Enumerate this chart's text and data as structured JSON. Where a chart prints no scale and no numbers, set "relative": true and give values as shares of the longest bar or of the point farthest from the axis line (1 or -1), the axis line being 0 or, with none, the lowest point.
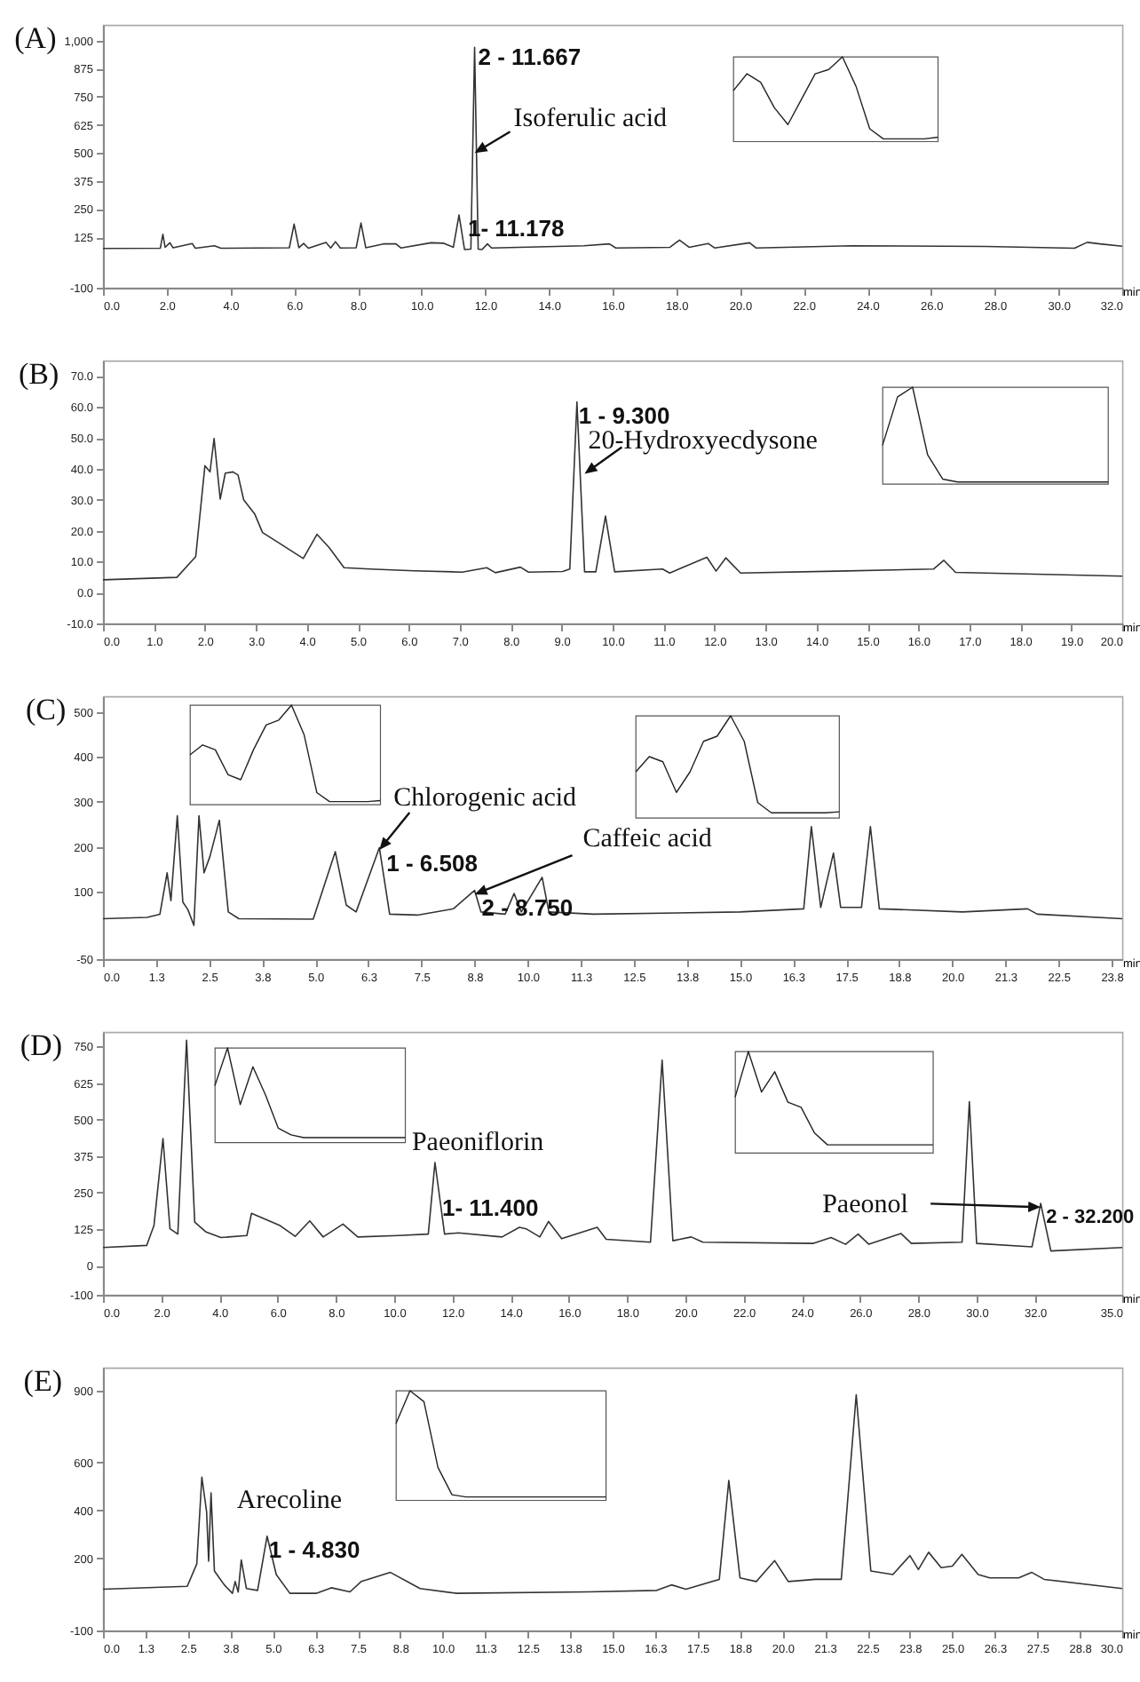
{
  "chart_data": [
    {
      "type": "line",
      "title": "(A)",
      "xlabel": "min",
      "color": "#333333",
      "xlim": [
        0,
        32
      ],
      "ylim": [
        -100,
        1070
      ],
      "xticks": [
        {
          "value": 0,
          "label": "0.0"
        },
        {
          "value": 2,
          "label": "2.0"
        },
        {
          "value": 4,
          "label": "4.0"
        },
        {
          "value": 6,
          "label": "6.0"
        },
        {
          "value": 8,
          "label": "8.0"
        },
        {
          "value": 10,
          "label": "10.0"
        },
        {
          "value": 12,
          "label": "12.0"
        },
        {
          "value": 14,
          "label": "14.0"
        },
        {
          "value": 16,
          "label": "16.0"
        },
        {
          "value": 18,
          "label": "18.0"
        },
        {
          "value": 20,
          "label": "20.0"
        },
        {
          "value": 22,
          "label": "22.0"
        },
        {
          "value": 24,
          "label": "24.0"
        },
        {
          "value": 26,
          "label": "26.0"
        },
        {
          "value": 28,
          "label": "28.0"
        },
        {
          "value": 30,
          "label": "30.0"
        },
        {
          "value": 32,
          "label": "32.0"
        }
      ],
      "yticks": [
        -100,
        125,
        250,
        375,
        500,
        625,
        750,
        875,
        {
          "value": 1000,
          "label": "1,000"
        }
      ],
      "x": [
        0,
        1.8,
        1.88,
        1.95,
        2.1,
        2.2,
        2.8,
        2.9,
        3.5,
        3.7,
        5.85,
        6.0,
        6.15,
        6.3,
        6.45,
        7.0,
        7.15,
        7.3,
        7.45,
        7.95,
        8.1,
        8.25,
        8.8,
        9.2,
        9.35,
        10.3,
        10.7,
        11.0,
        11.178,
        11.35,
        11.55,
        11.667,
        11.78,
        11.9,
        12.07,
        12.2,
        15.1,
        15.9,
        16.1,
        17.8,
        18.1,
        18.4,
        19.0,
        19.2,
        20.3,
        20.5,
        23.5,
        27.7,
        30.5,
        30.9,
        31.3,
        32.0
      ],
      "values": [
        75,
        76,
        138,
        80,
        100,
        78,
        97,
        76,
        87,
        76,
        78,
        183,
        78,
        97,
        76,
        102,
        77,
        105,
        77,
        78,
        188,
        78,
        95,
        95,
        77,
        100,
        98,
        80,
        224,
        70,
        72,
        970,
        72,
        70,
        95,
        77,
        87,
        95,
        77,
        80,
        112,
        80,
        97,
        77,
        100,
        77,
        87,
        84,
        76,
        102,
        95,
        85
      ],
      "annotations": [
        {
          "text": "2 - 11.667",
          "x": 11.667,
          "y": 970
        },
        {
          "text": "Isoferulic acid",
          "x": 11.667,
          "y": 500
        },
        {
          "text": "1- 11.178",
          "x": 11.178,
          "y": 224
        }
      ]
    },
    {
      "type": "line",
      "relative": true,
      "color": "#222222",
      "categories": [
        null,
        null,
        null,
        null,
        null,
        null,
        null,
        null,
        null,
        null,
        null,
        null,
        null,
        null,
        null,
        null
      ],
      "values": [
        0.6,
        0.8,
        0.7,
        0.4,
        0.2,
        0.5,
        0.8,
        0.85,
        1,
        0.65,
        0.15,
        0.03,
        0.03,
        0.03,
        0.03,
        0.05
      ]
    },
    {
      "type": "line",
      "title": "(B)",
      "xlabel": "min",
      "color": "#333333",
      "xlim": [
        0,
        20
      ],
      "ylim": [
        -10,
        75
      ],
      "xticks": [
        {
          "value": 0,
          "label": "0.0"
        },
        {
          "value": 1,
          "label": "1.0"
        },
        {
          "value": 2,
          "label": "2.0"
        },
        {
          "value": 3,
          "label": "3.0"
        },
        {
          "value": 4,
          "label": "4.0"
        },
        {
          "value": 5,
          "label": "5.0"
        },
        {
          "value": 6,
          "label": "6.0"
        },
        {
          "value": 7,
          "label": "7.0"
        },
        {
          "value": 8,
          "label": "8.0"
        },
        {
          "value": 9,
          "label": "9.0"
        },
        {
          "value": 10,
          "label": "10.0"
        },
        {
          "value": 11,
          "label": "11.0"
        },
        {
          "value": 12,
          "label": "12.0"
        },
        {
          "value": 13,
          "label": "13.0"
        },
        {
          "value": 14,
          "label": "14.0"
        },
        {
          "value": 15,
          "label": "15.0"
        },
        {
          "value": 16,
          "label": "16.0"
        },
        {
          "value": 17,
          "label": "17.0"
        },
        {
          "value": 18,
          "label": "18.0"
        },
        {
          "value": 19,
          "label": "19.0"
        },
        {
          "value": 20,
          "label": "20.0"
        }
      ],
      "yticks": [
        {
          "value": -10,
          "label": "-10.0"
        },
        {
          "value": 0,
          "label": "0.0"
        },
        {
          "value": 10,
          "label": "10.0"
        },
        {
          "value": 20,
          "label": "20.0"
        },
        {
          "value": 30,
          "label": "30.0"
        },
        {
          "value": 40,
          "label": "40.0"
        },
        {
          "value": 50,
          "label": "50.0"
        },
        {
          "value": 60,
          "label": "60.0"
        },
        {
          "value": 70,
          "label": "70.0"
        }
      ],
      "x": [
        0,
        1.45,
        1.82,
        2.0,
        2.1,
        2.18,
        2.3,
        2.4,
        2.55,
        2.65,
        2.76,
        2.98,
        3.13,
        3.5,
        3.93,
        4.2,
        4.44,
        4.73,
        5.24,
        6.1,
        7.05,
        7.53,
        7.7,
        8.19,
        8.35,
        9.02,
        9.16,
        9.3,
        9.45,
        9.67,
        9.86,
        10.04,
        10.98,
        11.12,
        11.85,
        12.03,
        12.22,
        12.51,
        14.4,
        16.3,
        16.5,
        16.73,
        20
      ],
      "values": [
        4.1,
        4.9,
        11.6,
        41,
        39,
        49.8,
        30.2,
        38.6,
        39,
        38,
        30,
        25.3,
        19.4,
        15.5,
        11,
        18.8,
        14.5,
        8,
        7.6,
        7,
        6.6,
        8,
        6.4,
        8.2,
        6.6,
        6.8,
        7.6,
        61.6,
        6.7,
        6.7,
        24.7,
        6.7,
        7.6,
        6.3,
        11.4,
        6.9,
        11.2,
        6.3,
        6.9,
        7.6,
        10.4,
        6.5,
        5.3
      ],
      "annotations": [
        {
          "text": "1 - 9.300",
          "x": 9.3,
          "y": 61.6
        },
        {
          "text": "20-Hydroxyecdysone",
          "x": 9.45,
          "y": 38.4
        }
      ]
    },
    {
      "type": "line",
      "relative": true,
      "color": "#222222",
      "categories": [
        null,
        null,
        null,
        null,
        null,
        null,
        null,
        null,
        null,
        null,
        null,
        null,
        null,
        null,
        null,
        null
      ],
      "values": [
        0.4,
        0.9,
        1,
        0.3,
        0.05,
        0.02,
        0.02,
        0.02,
        0.02,
        0.02,
        0.02,
        0.02,
        0.02,
        0.02,
        0.02,
        0.02
      ]
    },
    {
      "type": "line",
      "title": "(C)",
      "xlabel": "min",
      "color": "#333333",
      "xlim": [
        0,
        24.0
      ],
      "ylim": [
        -50,
        535
      ],
      "xticks": [
        {
          "value": 0,
          "label": "0.0"
        },
        {
          "value": 1.25,
          "label": "1.3"
        },
        {
          "value": 2.5,
          "label": "2.5"
        },
        {
          "value": 3.75,
          "label": "3.8"
        },
        {
          "value": 5,
          "label": "5.0"
        },
        {
          "value": 6.25,
          "label": "6.3"
        },
        {
          "value": 7.5,
          "label": "7.5"
        },
        {
          "value": 8.75,
          "label": "8.8"
        },
        {
          "value": 10,
          "label": "10.0"
        },
        {
          "value": 11.25,
          "label": "11.3"
        },
        {
          "value": 12.5,
          "label": "12.5"
        },
        {
          "value": 13.75,
          "label": "13.8"
        },
        {
          "value": 15,
          "label": "15.0"
        },
        {
          "value": 16.25,
          "label": "16.3"
        },
        {
          "value": 17.5,
          "label": "17.5"
        },
        {
          "value": 18.75,
          "label": "18.8"
        },
        {
          "value": 20,
          "label": "20.0"
        },
        {
          "value": 21.25,
          "label": "21.3"
        },
        {
          "value": 22.5,
          "label": "22.5"
        },
        {
          "value": 23.75,
          "label": "23.8"
        }
      ],
      "yticks": [
        -50,
        100,
        200,
        300,
        400,
        500
      ],
      "x": [
        0,
        1.04,
        1.34,
        1.51,
        1.6,
        1.75,
        1.88,
        2.0,
        2.14,
        2.26,
        2.38,
        2.52,
        2.74,
        2.95,
        3.2,
        4.95,
        5.47,
        5.73,
        5.96,
        6.508,
        6.75,
        7.4,
        8.25,
        8.75,
        8.9,
        9.47,
        9.68,
        9.85,
        10.34,
        10.5,
        11.55,
        15.0,
        16.5,
        16.68,
        16.9,
        17.2,
        17.37,
        17.86,
        18.07,
        18.28,
        20.24,
        21.77,
        22.0,
        24.0
      ],
      "values": [
        40,
        43,
        50,
        142,
        80,
        269,
        77,
        60,
        25,
        269,
        142,
        179,
        259,
        55,
        40,
        39,
        189,
        70,
        55,
        198,
        50,
        48,
        62,
        103,
        55,
        50,
        96,
        55,
        132,
        55,
        50,
        55,
        62,
        245,
        65,
        186,
        65,
        65,
        245,
        62,
        55,
        62,
        50,
        40
      ],
      "annotations": [
        {
          "text": "Chlorogenic acid",
          "x": 6.508,
          "y": 193
        },
        {
          "text": "1 - 6.508",
          "x": 6.508,
          "y": 198
        },
        {
          "text": "Caffeic acid",
          "x": 8.75,
          "y": 94
        },
        {
          "text": "2 - 8.750",
          "x": 8.75,
          "y": 103
        }
      ]
    },
    {
      "type": "line",
      "relative": true,
      "color": "#222222",
      "categories": [
        null,
        null,
        null,
        null,
        null,
        null,
        null,
        null,
        null,
        null,
        null,
        null,
        null,
        null,
        null,
        null
      ],
      "values": [
        0.5,
        0.6,
        0.55,
        0.3,
        0.25,
        0.55,
        0.8,
        0.85,
        1,
        0.7,
        0.12,
        0.03,
        0.03,
        0.03,
        0.03,
        0.04
      ]
    },
    {
      "type": "line",
      "relative": true,
      "color": "#222222",
      "categories": [
        null,
        null,
        null,
        null,
        null,
        null,
        null,
        null,
        null,
        null,
        null,
        null,
        null,
        null,
        null,
        null
      ],
      "values": [
        0.45,
        0.6,
        0.55,
        0.25,
        0.45,
        0.75,
        0.8,
        1,
        0.75,
        0.15,
        0.05,
        0.05,
        0.05,
        0.05,
        0.05,
        0.06
      ]
    },
    {
      "type": "line",
      "title": "(D)",
      "xlabel": "min",
      "color": "#333333",
      "xlim": [
        0,
        35
      ],
      "ylim": [
        -100,
        800
      ],
      "xticks": [
        {
          "value": 0,
          "label": "0.0"
        },
        {
          "value": 2,
          "label": "2.0"
        },
        {
          "value": 4,
          "label": "4.0"
        },
        {
          "value": 6,
          "label": "6.0"
        },
        {
          "value": 8,
          "label": "8.0"
        },
        {
          "value": 10,
          "label": "10.0"
        },
        {
          "value": 12,
          "label": "12.0"
        },
        {
          "value": 14,
          "label": "14.0"
        },
        {
          "value": 16,
          "label": "16.0"
        },
        {
          "value": 18,
          "label": "18.0"
        },
        {
          "value": 20,
          "label": "20.0"
        },
        {
          "value": 22,
          "label": "22.0"
        },
        {
          "value": 24,
          "label": "24.0"
        },
        {
          "value": 26,
          "label": "26.0"
        },
        {
          "value": 28,
          "label": "28.0"
        },
        {
          "value": 30,
          "label": "30.0"
        },
        {
          "value": 32,
          "label": "32.0"
        },
        {
          "value": 35,
          "label": "35.0"
        }
      ],
      "yticks": [
        -100,
        0,
        125,
        250,
        375,
        500,
        625,
        750
      ],
      "x": [
        0,
        1.5,
        1.75,
        2.06,
        2.3,
        2.57,
        2.87,
        3.15,
        3.54,
        4.05,
        4.94,
        5.1,
        6.08,
        6.6,
        7.1,
        7.56,
        8.24,
        8.75,
        10.15,
        11.17,
        11.4,
        11.73,
        12.2,
        13.7,
        14.3,
        14.53,
        15.0,
        15.3,
        15.75,
        16.97,
        17.28,
        18.8,
        19.2,
        19.57,
        20.2,
        20.6,
        24.4,
        25.0,
        25.5,
        25.93,
        26.3,
        27.4,
        27.76,
        29.5,
        29.75,
        30.0,
        31.9,
        32.2,
        32.55,
        35
      ],
      "values": [
        62,
        69,
        137,
        435,
        126,
        108,
        772,
        149,
        115,
        96,
        103,
        179,
        137,
        100,
        153,
        98,
        142,
        98,
        103,
        108,
        353,
        108,
        112,
        98,
        131,
        126,
        98,
        151,
        92,
        131,
        90,
        80,
        703,
        85,
        98,
        80,
        76,
        96,
        73,
        108,
        73,
        110,
        76,
        80,
        561,
        76,
        64,
        213,
        50,
        62
      ],
      "annotations": [
        {
          "text": "Paeoniflorin",
          "x": 11.4,
          "y": 353
        },
        {
          "text": "1- 11.400",
          "x": 11.4,
          "y": 353
        },
        {
          "text": "Paeonol",
          "x": 32.2,
          "y": 200
        },
        {
          "text": "2 - 32.200",
          "x": 32.2,
          "y": 213
        }
      ]
    },
    {
      "type": "line",
      "relative": true,
      "color": "#222222",
      "categories": [
        null,
        null,
        null,
        null,
        null,
        null,
        null,
        null,
        null,
        null,
        null,
        null,
        null,
        null,
        null,
        null
      ],
      "values": [
        0.6,
        1,
        0.4,
        0.8,
        0.5,
        0.15,
        0.08,
        0.05,
        0.05,
        0.05,
        0.05,
        0.05,
        0.05,
        0.05,
        0.05,
        0.05
      ]
    },
    {
      "type": "line",
      "relative": true,
      "color": "#222222",
      "categories": [
        null,
        null,
        null,
        null,
        null,
        null,
        null,
        null,
        null,
        null,
        null,
        null,
        null,
        null,
        null,
        null
      ],
      "values": [
        0.55,
        1,
        0.6,
        0.8,
        0.5,
        0.45,
        0.2,
        0.08,
        0.08,
        0.08,
        0.08,
        0.08,
        0.08,
        0.08,
        0.08,
        0.08
      ]
    },
    {
      "type": "line",
      "title": "(E)",
      "xlabel": "min",
      "color": "#333333",
      "xlim": [
        0,
        30
      ],
      "ylim": [
        -100,
        995
      ],
      "xticks": [
        {
          "value": 0,
          "label": "0.0"
        },
        {
          "value": 1.25,
          "label": "1.3"
        },
        {
          "value": 2.5,
          "label": "2.5"
        },
        {
          "value": 3.75,
          "label": "3.8"
        },
        {
          "value": 5,
          "label": "5.0"
        },
        {
          "value": 6.25,
          "label": "6.3"
        },
        {
          "value": 7.5,
          "label": "7.5"
        },
        {
          "value": 8.75,
          "label": "8.8"
        },
        {
          "value": 10,
          "label": "10.0"
        },
        {
          "value": 11.25,
          "label": "11.3"
        },
        {
          "value": 12.5,
          "label": "12.5"
        },
        {
          "value": 13.75,
          "label": "13.8"
        },
        {
          "value": 15,
          "label": "15.0"
        },
        {
          "value": 16.25,
          "label": "16.3"
        },
        {
          "value": 17.5,
          "label": "17.5"
        },
        {
          "value": 18.75,
          "label": "18.8"
        },
        {
          "value": 20,
          "label": "20.0"
        },
        {
          "value": 21.25,
          "label": "21.3"
        },
        {
          "value": 22.5,
          "label": "22.5"
        },
        {
          "value": 23.75,
          "label": "23.8"
        },
        {
          "value": 25,
          "label": "25.0"
        },
        {
          "value": 26.25,
          "label": "26.3"
        },
        {
          "value": 27.5,
          "label": "27.5"
        },
        {
          "value": 28.75,
          "label": "28.8"
        },
        {
          "value": 30,
          "label": "30.0"
        }
      ],
      "yticks": [
        -100,
        200,
        400,
        600,
        900
      ],
      "x": [
        0,
        2.48,
        2.76,
        2.91,
        3.05,
        3.11,
        3.18,
        3.28,
        3.57,
        3.81,
        3.89,
        3.98,
        4.07,
        4.22,
        4.55,
        4.83,
        5.1,
        5.5,
        6.29,
        6.72,
        7.27,
        7.6,
        8.46,
        9.33,
        10.4,
        14.3,
        16.3,
        16.73,
        17.16,
        18.14,
        18.42,
        18.75,
        19.23,
        19.77,
        20.17,
        20.97,
        21.73,
        22.17,
        22.6,
        23.25,
        23.75,
        24.0,
        24.3,
        24.67,
        25.0,
        25.28,
        25.76,
        26.1,
        26.95,
        27.34,
        27.7,
        30.0
      ],
      "values": [
        72,
        84,
        177,
        539,
        394,
        189,
        473,
        148,
        90,
        55,
        104,
        60,
        194,
        75,
        67,
        293,
        133,
        55,
        55,
        78,
        61,
        104,
        142,
        75,
        55,
        61,
        67,
        90,
        72,
        113,
        525,
        119,
        104,
        191,
        104,
        113,
        113,
        882,
        148,
        133,
        212,
        154,
        226,
        162,
        168,
        217,
        133,
        119,
        119,
        142,
        113,
        75
      ],
      "annotations": [
        {
          "text": "Arecoline",
          "x": 4.83,
          "y": 293
        },
        {
          "text": "1 - 4.830",
          "x": 4.83,
          "y": 293
        }
      ]
    },
    {
      "type": "line",
      "relative": true,
      "color": "#222222",
      "categories": [
        null,
        null,
        null,
        null,
        null,
        null,
        null,
        null,
        null,
        null,
        null,
        null,
        null,
        null,
        null,
        null
      ],
      "values": [
        0.7,
        1,
        0.9,
        0.3,
        0.05,
        0.03,
        0.03,
        0.03,
        0.03,
        0.03,
        0.03,
        0.03,
        0.03,
        0.03,
        0.03,
        0.03
      ]
    }
  ]
}
